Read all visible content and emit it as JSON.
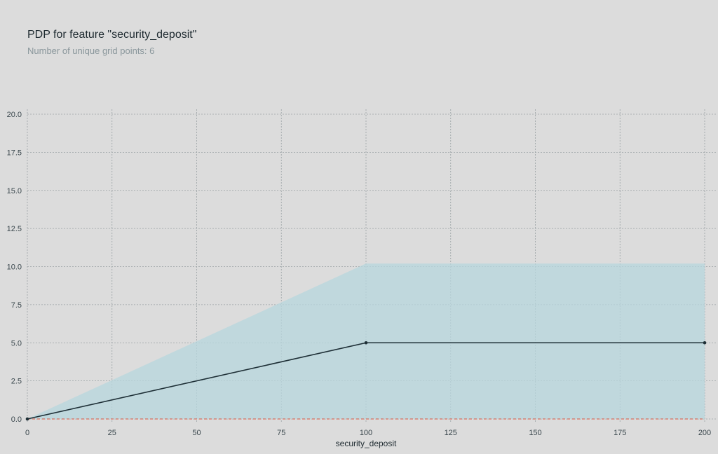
{
  "header": {
    "title": "PDP for feature \"security_deposit\"",
    "subtitle": "Number of unique grid points: 6"
  },
  "chart_data": {
    "type": "line",
    "title": "PDP for feature \"security_deposit\"",
    "subtitle": "Number of unique grid points: 6",
    "xlabel": "security_deposit",
    "ylabel": "",
    "xlim": [
      0,
      200
    ],
    "ylim": [
      0,
      20
    ],
    "x_ticks": [
      0,
      25,
      50,
      75,
      100,
      125,
      150,
      175,
      200
    ],
    "y_ticks": [
      0.0,
      2.5,
      5.0,
      7.5,
      10.0,
      12.5,
      15.0,
      17.5,
      20.0
    ],
    "x_tick_labels": [
      "0",
      "25",
      "50",
      "75",
      "100",
      "125",
      "150",
      "175",
      "200"
    ],
    "y_tick_labels": [
      "0.0",
      "2.5",
      "5.0",
      "7.5",
      "10.0",
      "12.5",
      "15.0",
      "17.5",
      "20.0"
    ],
    "grid": true,
    "series": [
      {
        "x": [
          0,
          100,
          200
        ],
        "y": [
          0,
          5,
          5
        ]
      }
    ],
    "band": {
      "x": [
        0,
        100,
        200
      ],
      "lower": [
        0,
        0,
        0
      ],
      "upper": [
        0,
        10.2,
        10.2
      ]
    },
    "reference_line": {
      "y": 0
    },
    "colors": {
      "line": "#1e2f36",
      "band": "#b7d7dd",
      "reference": "#d9553f",
      "grid": "#9aa1a4",
      "background": "#dcdcdc"
    }
  }
}
